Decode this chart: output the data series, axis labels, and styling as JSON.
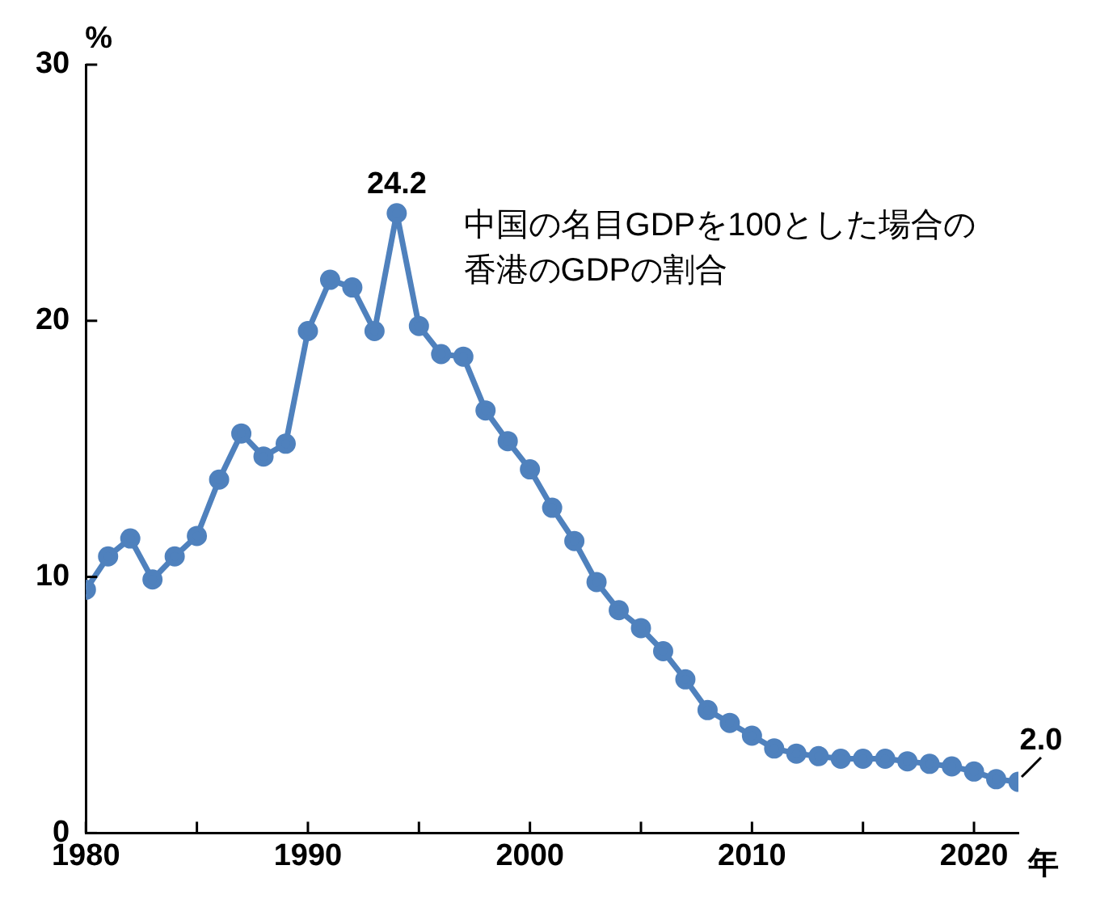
{
  "chart_data": {
    "type": "line",
    "ylabel": "%",
    "xlabel": "年",
    "x": [
      1980,
      1981,
      1982,
      1983,
      1984,
      1985,
      1986,
      1987,
      1988,
      1989,
      1990,
      1991,
      1992,
      1993,
      1994,
      1995,
      1996,
      1997,
      1998,
      1999,
      2000,
      2001,
      2002,
      2003,
      2004,
      2005,
      2006,
      2007,
      2008,
      2009,
      2010,
      2011,
      2012,
      2013,
      2014,
      2015,
      2016,
      2017,
      2018,
      2019,
      2020,
      2021,
      2022
    ],
    "series": [
      {
        "color": "#4f81bd",
        "values": [
          9.5,
          10.8,
          11.5,
          9.9,
          10.8,
          11.6,
          13.8,
          15.6,
          14.7,
          15.2,
          19.6,
          21.6,
          21.3,
          19.6,
          24.2,
          19.8,
          18.7,
          18.6,
          16.5,
          15.3,
          14.2,
          12.7,
          11.4,
          9.8,
          8.7,
          8.0,
          7.1,
          6.0,
          4.8,
          4.3,
          3.8,
          3.3,
          3.1,
          3.0,
          2.9,
          2.9,
          2.9,
          2.8,
          2.7,
          2.6,
          2.4,
          2.1,
          2.0
        ]
      }
    ],
    "xlim": [
      1980,
      2022
    ],
    "xticks": [
      1980,
      {
        "value": 1985,
        "label": null
      },
      1990,
      {
        "value": 1995,
        "label": null
      },
      2000,
      {
        "value": 2005,
        "label": null
      },
      2010,
      {
        "value": 2015,
        "label": null
      },
      2020
    ],
    "ylim": [
      0,
      30
    ],
    "yticks": [
      0,
      10,
      20,
      30
    ],
    "grid": false,
    "legend": false,
    "marker": "circle",
    "line_style": "solid",
    "annotations": [
      "中国の名目GDPを100とした場合の",
      "香港のGDPの割合",
      {
        "text": "24.2",
        "x": 1994,
        "y": 24.2
      },
      {
        "text": "2.0",
        "x": 2022,
        "y": 2.0
      }
    ]
  }
}
